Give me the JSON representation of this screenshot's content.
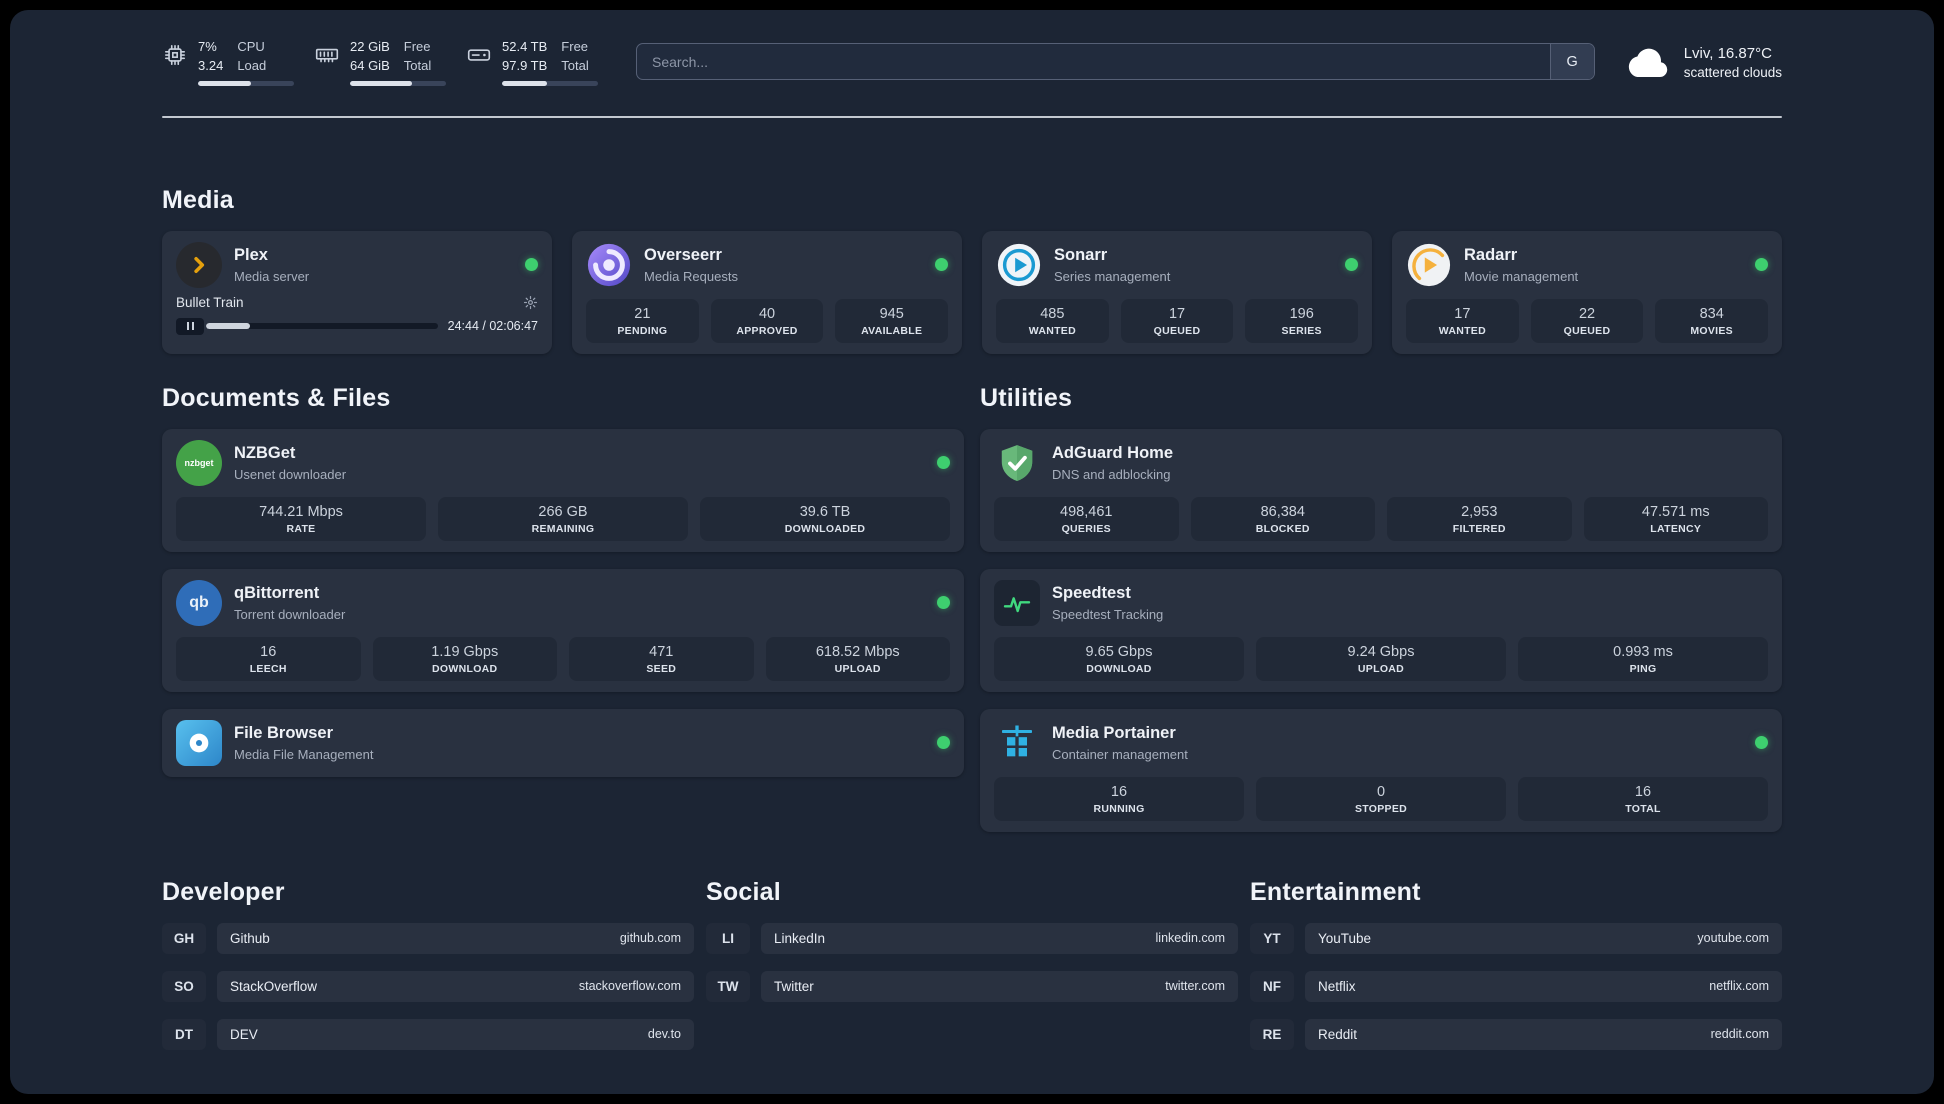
{
  "topbar": {
    "cpu": {
      "usage": "7%",
      "load": "3.24",
      "label_top": "CPU",
      "label_bottom": "Load",
      "progress_pct": 55
    },
    "memory": {
      "free": "22 GiB",
      "total": "64 GiB",
      "label_top": "Free",
      "label_bottom": "Total",
      "progress_pct": 65
    },
    "disk": {
      "free": "52.4 TB",
      "total": "97.9 TB",
      "label_top": "Free",
      "label_bottom": "Total",
      "progress_pct": 47
    },
    "search": {
      "placeholder": "Search...",
      "button_label": "G"
    },
    "weather": {
      "location": "Lviv, 16.87°C",
      "condition": "scattered clouds"
    }
  },
  "media": {
    "title": "Media",
    "apps": [
      {
        "name": "Plex",
        "subtitle": "Media server",
        "online": true,
        "player": {
          "track": "Bullet Train",
          "time": "24:44 / 02:06:47",
          "progress_pct": 19
        }
      },
      {
        "name": "Overseerr",
        "subtitle": "Media Requests",
        "online": true,
        "stats": [
          {
            "value": "21",
            "label": "PENDING"
          },
          {
            "value": "40",
            "label": "APPROVED"
          },
          {
            "value": "945",
            "label": "AVAILABLE"
          }
        ]
      },
      {
        "name": "Sonarr",
        "subtitle": "Series management",
        "online": true,
        "stats": [
          {
            "value": "485",
            "label": "WANTED"
          },
          {
            "value": "17",
            "label": "QUEUED"
          },
          {
            "value": "196",
            "label": "SERIES"
          }
        ]
      },
      {
        "name": "Radarr",
        "subtitle": "Movie management",
        "online": true,
        "stats": [
          {
            "value": "17",
            "label": "WANTED"
          },
          {
            "value": "22",
            "label": "QUEUED"
          },
          {
            "value": "834",
            "label": "MOVIES"
          }
        ]
      }
    ]
  },
  "documents": {
    "title": "Documents & Files",
    "apps": [
      {
        "name": "NZBGet",
        "subtitle": "Usenet downloader",
        "online": true,
        "icon_text": "nzbget",
        "stats": [
          {
            "value": "744.21 Mbps",
            "label": "RATE"
          },
          {
            "value": "266 GB",
            "label": "REMAINING"
          },
          {
            "value": "39.6 TB",
            "label": "DOWNLOADED"
          }
        ]
      },
      {
        "name": "qBittorrent",
        "subtitle": "Torrent downloader",
        "online": true,
        "icon_text": "qb",
        "stats": [
          {
            "value": "16",
            "label": "LEECH"
          },
          {
            "value": "1.19 Gbps",
            "label": "DOWNLOAD"
          },
          {
            "value": "471",
            "label": "SEED"
          },
          {
            "value": "618.52 Mbps",
            "label": "UPLOAD"
          }
        ]
      },
      {
        "name": "File Browser",
        "subtitle": "Media File Management",
        "online": true,
        "stats": []
      }
    ]
  },
  "utilities": {
    "title": "Utilities",
    "apps": [
      {
        "name": "AdGuard Home",
        "subtitle": "DNS and adblocking",
        "stats": [
          {
            "value": "498,461",
            "label": "QUERIES"
          },
          {
            "value": "86,384",
            "label": "BLOCKED"
          },
          {
            "value": "2,953",
            "label": "FILTERED"
          },
          {
            "value": "47.571 ms",
            "label": "LATENCY"
          }
        ]
      },
      {
        "name": "Speedtest",
        "subtitle": "Speedtest Tracking",
        "stats": [
          {
            "value": "9.65 Gbps",
            "label": "DOWNLOAD"
          },
          {
            "value": "9.24 Gbps",
            "label": "UPLOAD"
          },
          {
            "value": "0.993 ms",
            "label": "PING"
          }
        ]
      },
      {
        "name": "Media Portainer",
        "subtitle": "Container management",
        "online": true,
        "stats": [
          {
            "value": "16",
            "label": "RUNNING"
          },
          {
            "value": "0",
            "label": "STOPPED"
          },
          {
            "value": "16",
            "label": "TOTAL"
          }
        ]
      }
    ]
  },
  "links": {
    "developer": {
      "title": "Developer",
      "items": [
        {
          "abbr": "GH",
          "name": "Github",
          "url": "github.com"
        },
        {
          "abbr": "SO",
          "name": "StackOverflow",
          "url": "stackoverflow.com"
        },
        {
          "abbr": "DT",
          "name": "DEV",
          "url": "dev.to"
        }
      ]
    },
    "social": {
      "title": "Social",
      "items": [
        {
          "abbr": "LI",
          "name": "LinkedIn",
          "url": "linkedin.com"
        },
        {
          "abbr": "TW",
          "name": "Twitter",
          "url": "twitter.com"
        }
      ]
    },
    "entertainment": {
      "title": "Entertainment",
      "items": [
        {
          "abbr": "YT",
          "name": "YouTube",
          "url": "youtube.com"
        },
        {
          "abbr": "NF",
          "name": "Netflix",
          "url": "netflix.com"
        },
        {
          "abbr": "RE",
          "name": "Reddit",
          "url": "reddit.com"
        }
      ]
    }
  },
  "colors": {
    "background": "#1c2534",
    "card": "#293140",
    "tile": "#212937",
    "status_green": "#3ecf6f",
    "plex_gold": "#e5a00d"
  }
}
